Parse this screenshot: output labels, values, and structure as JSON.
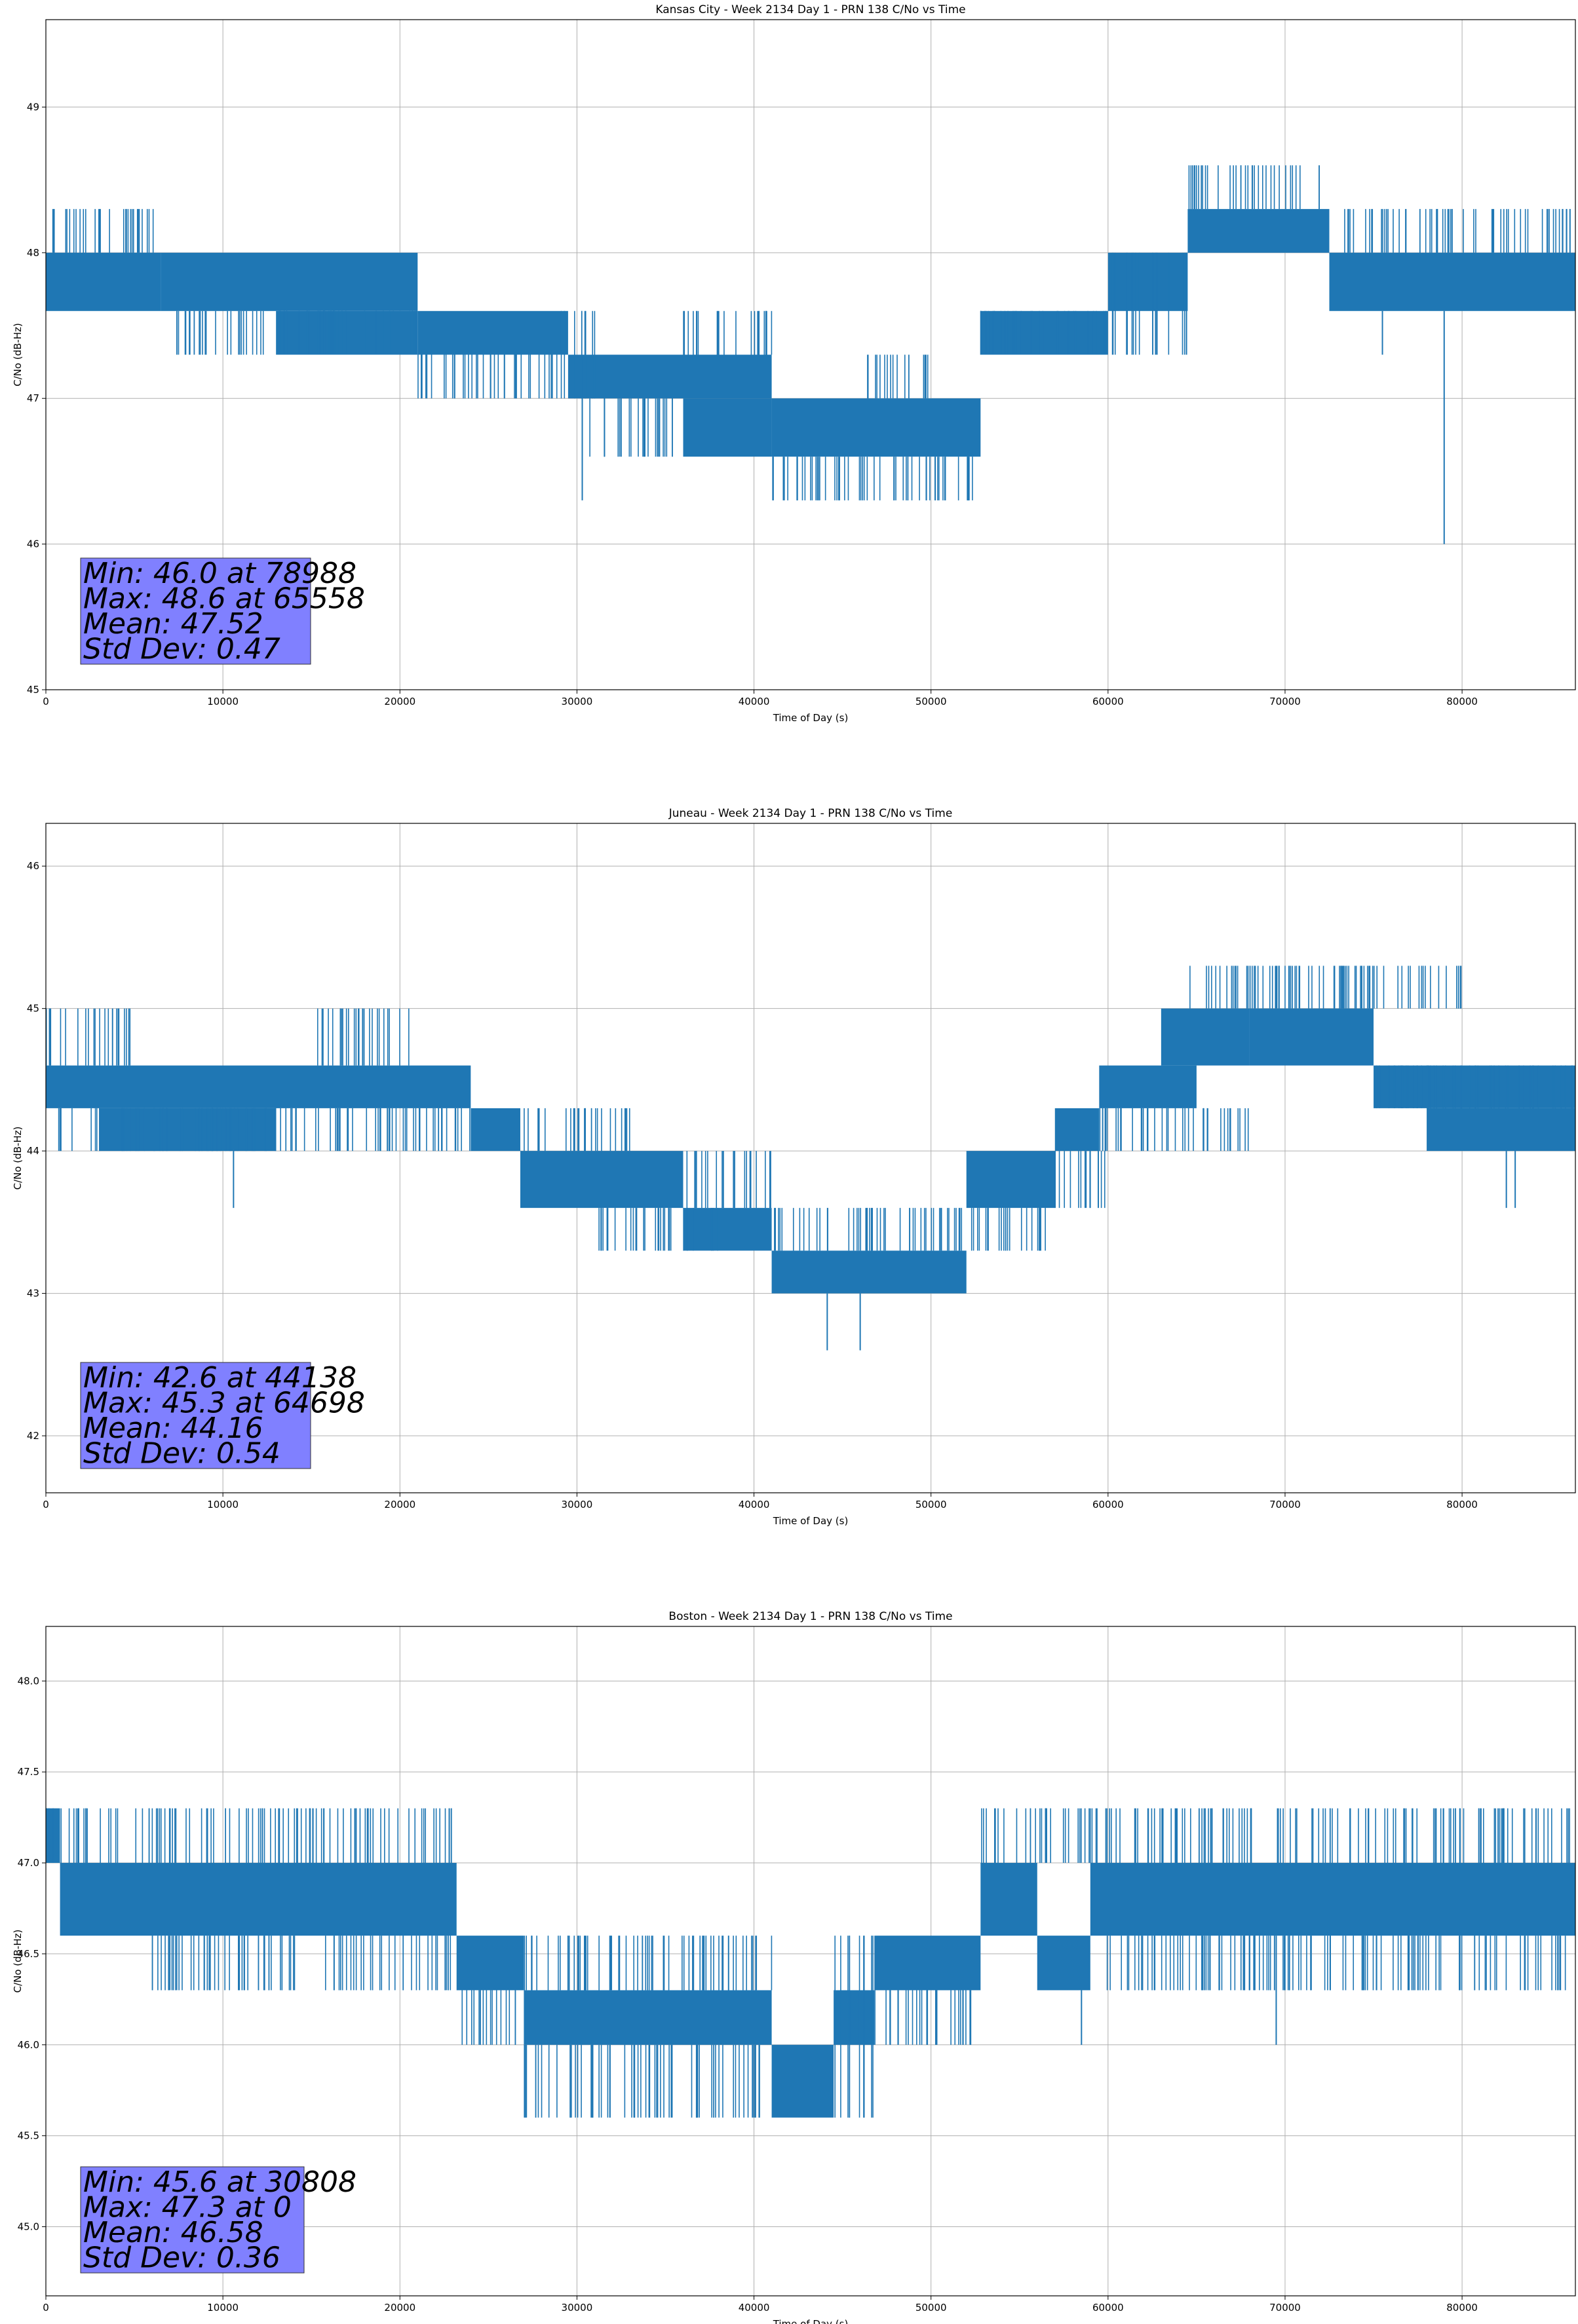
{
  "figure": {
    "background": "#ffffff",
    "line_color": "#1f77b4",
    "stats_box_color": "#8080ff",
    "grid_color": "#b0b0b0"
  },
  "chart_data": [
    {
      "type": "line",
      "title": "Kansas City - Week 2134 Day 1 - PRN 138 C/No vs Time",
      "xlabel": "Time of Day (s)",
      "ylabel": "C/No (dB-Hz)",
      "xlim": [
        0,
        86400
      ],
      "ylim": [
        45,
        49.6
      ],
      "xticks": [
        0,
        10000,
        20000,
        30000,
        40000,
        50000,
        60000,
        70000,
        80000
      ],
      "xtick_labels": [
        "0",
        "10000",
        "20000",
        "30000",
        "40000",
        "50000",
        "60000",
        "70000",
        "80000"
      ],
      "yticks": [
        45,
        46,
        47,
        48,
        49
      ],
      "ytick_labels": [
        "45",
        "46",
        "47",
        "48",
        "49"
      ],
      "grid": true,
      "stats_box": {
        "placement": "bottom-left",
        "lines": [
          "Min: 46.0 at 78988",
          "Max: 48.6 at 65558",
          "Mean: 47.52",
          "Std Dev: 0.47"
        ]
      },
      "bands": [
        {
          "x": [
            0,
            6500
          ],
          "y": [
            47.6,
            48.0
          ]
        },
        {
          "x": [
            6500,
            21000
          ],
          "y": [
            47.6,
            48.0
          ]
        },
        {
          "x": [
            13000,
            21000
          ],
          "y": [
            47.3,
            47.6
          ]
        },
        {
          "x": [
            21000,
            29500
          ],
          "y": [
            47.3,
            47.6
          ]
        },
        {
          "x": [
            29500,
            41000
          ],
          "y": [
            47.0,
            47.3
          ]
        },
        {
          "x": [
            36000,
            41000
          ],
          "y": [
            46.6,
            47.0
          ]
        },
        {
          "x": [
            41000,
            52800
          ],
          "y": [
            46.6,
            47.0
          ]
        },
        {
          "x": [
            52800,
            60000
          ],
          "y": [
            47.3,
            47.6
          ]
        },
        {
          "x": [
            60000,
            64500
          ],
          "y": [
            47.6,
            48.0
          ]
        },
        {
          "x": [
            64500,
            72500
          ],
          "y": [
            48.0,
            48.3
          ]
        },
        {
          "x": [
            72500,
            86400
          ],
          "y": [
            47.6,
            48.0
          ]
        }
      ],
      "spikes": [
        {
          "x": [
            0,
            6500
          ],
          "y": [
            48.0,
            48.3
          ]
        },
        {
          "x": [
            7000,
            21000
          ],
          "y": [
            47.3,
            47.6
          ]
        },
        {
          "x": [
            21000,
            29000
          ],
          "y": [
            47.0,
            47.3
          ]
        },
        {
          "x": [
            29000,
            31000
          ],
          "y": [
            47.6,
            47.0
          ]
        },
        {
          "x": [
            30000,
            36000
          ],
          "y": [
            46.6,
            47.0
          ]
        },
        {
          "x": [
            36000,
            41000
          ],
          "y": [
            47.3,
            47.6
          ]
        },
        {
          "x": [
            41000,
            52800
          ],
          "y": [
            46.3,
            46.6
          ]
        },
        {
          "x": [
            46000,
            50000
          ],
          "y": [
            47.0,
            47.3
          ]
        },
        {
          "x": [
            52800,
            60000
          ],
          "y": [
            47.6,
            47.3
          ]
        },
        {
          "x": [
            60000,
            64500
          ],
          "y": [
            47.3,
            48.0
          ]
        },
        {
          "x": [
            64500,
            72500
          ],
          "y": [
            48.3,
            48.6
          ]
        },
        {
          "x": [
            72500,
            86400
          ],
          "y": [
            48.0,
            48.3
          ]
        }
      ],
      "extra_spikes": [
        {
          "x": 30300,
          "y0": 47.0,
          "y1": 46.3
        },
        {
          "x": 78988,
          "y0": 47.6,
          "y1": 46.0
        },
        {
          "x": 75500,
          "y0": 47.6,
          "y1": 47.3
        }
      ]
    },
    {
      "type": "line",
      "title": "Juneau - Week 2134 Day 1 - PRN 138 C/No vs Time",
      "xlabel": "Time of Day (s)",
      "ylabel": "C/No (dB-Hz)",
      "xlim": [
        0,
        86400
      ],
      "ylim": [
        41.6,
        46.3
      ],
      "xticks": [
        0,
        10000,
        20000,
        30000,
        40000,
        50000,
        60000,
        70000,
        80000
      ],
      "xtick_labels": [
        "0",
        "10000",
        "20000",
        "30000",
        "40000",
        "50000",
        "60000",
        "70000",
        "80000"
      ],
      "yticks": [
        42,
        43,
        44,
        45,
        46
      ],
      "ytick_labels": [
        "42",
        "43",
        "44",
        "45",
        "46"
      ],
      "grid": true,
      "stats_box": {
        "placement": "bottom-left",
        "lines": [
          "Min: 42.6 at 44138",
          "Max: 45.3 at 64698",
          "Mean: 44.16",
          "Std Dev: 0.54"
        ]
      },
      "bands": [
        {
          "x": [
            0,
            24000
          ],
          "y": [
            44.3,
            44.6
          ]
        },
        {
          "x": [
            3000,
            13000
          ],
          "y": [
            44.0,
            44.3
          ]
        },
        {
          "x": [
            24000,
            26800
          ],
          "y": [
            44.0,
            44.3
          ]
        },
        {
          "x": [
            26800,
            36000
          ],
          "y": [
            43.6,
            44.0
          ]
        },
        {
          "x": [
            36000,
            41000
          ],
          "y": [
            43.3,
            43.6
          ]
        },
        {
          "x": [
            41000,
            52000
          ],
          "y": [
            43.0,
            43.3
          ]
        },
        {
          "x": [
            52000,
            57000
          ],
          "y": [
            43.6,
            44.0
          ]
        },
        {
          "x": [
            57000,
            59500
          ],
          "y": [
            44.0,
            44.3
          ]
        },
        {
          "x": [
            59500,
            65000
          ],
          "y": [
            44.3,
            44.6
          ]
        },
        {
          "x": [
            63000,
            68000
          ],
          "y": [
            44.6,
            45.0
          ]
        },
        {
          "x": [
            68000,
            75000
          ],
          "y": [
            44.6,
            45.0
          ]
        },
        {
          "x": [
            75000,
            86400
          ],
          "y": [
            44.3,
            44.6
          ]
        },
        {
          "x": [
            78000,
            86400
          ],
          "y": [
            44.0,
            44.3
          ]
        }
      ],
      "spikes": [
        {
          "x": [
            0,
            5000
          ],
          "y": [
            44.6,
            45.0
          ]
        },
        {
          "x": [
            0,
            24000
          ],
          "y": [
            44.0,
            44.3
          ]
        },
        {
          "x": [
            15000,
            21000
          ],
          "y": [
            44.6,
            45.0
          ]
        },
        {
          "x": [
            26800,
            33000
          ],
          "y": [
            44.0,
            44.3
          ]
        },
        {
          "x": [
            31000,
            38000
          ],
          "y": [
            43.3,
            43.6
          ]
        },
        {
          "x": [
            36000,
            41000
          ],
          "y": [
            43.6,
            44.0
          ]
        },
        {
          "x": [
            41000,
            52000
          ],
          "y": [
            43.3,
            43.6
          ]
        },
        {
          "x": [
            52000,
            57000
          ],
          "y": [
            43.3,
            43.6
          ]
        },
        {
          "x": [
            57000,
            60000
          ],
          "y": [
            43.6,
            44.0
          ]
        },
        {
          "x": [
            59500,
            68000
          ],
          "y": [
            44.0,
            44.3
          ]
        },
        {
          "x": [
            64500,
            71000
          ],
          "y": [
            45.0,
            45.3
          ]
        },
        {
          "x": [
            68000,
            80000
          ],
          "y": [
            45.0,
            45.3
          ]
        },
        {
          "x": [
            75000,
            86400
          ],
          "y": [
            44.6,
            44.3
          ]
        }
      ],
      "extra_spikes": [
        {
          "x": 10600,
          "y0": 44.0,
          "y1": 43.6
        },
        {
          "x": 44138,
          "y0": 43.0,
          "y1": 42.6
        },
        {
          "x": 46000,
          "y0": 43.0,
          "y1": 42.6
        },
        {
          "x": 82500,
          "y0": 44.0,
          "y1": 43.6
        },
        {
          "x": 83000,
          "y0": 44.0,
          "y1": 43.6
        }
      ]
    },
    {
      "type": "line",
      "title": "Boston - Week 2134 Day 1 - PRN 138 C/No vs Time",
      "xlabel": "Time of Day (s)",
      "ylabel": "C/No (dB-Hz)",
      "xlim": [
        0,
        86400
      ],
      "ylim": [
        44.62,
        48.3
      ],
      "xticks": [
        0,
        10000,
        20000,
        30000,
        40000,
        50000,
        60000,
        70000,
        80000
      ],
      "xtick_labels": [
        "0",
        "10000",
        "20000",
        "30000",
        "40000",
        "50000",
        "60000",
        "70000",
        "80000"
      ],
      "yticks": [
        45.0,
        45.5,
        46.0,
        46.5,
        47.0,
        47.5,
        48.0
      ],
      "ytick_labels": [
        "45.0",
        "45.5",
        "46.0",
        "46.5",
        "47.0",
        "47.5",
        "48.0"
      ],
      "grid": true,
      "stats_box": {
        "placement": "bottom-left",
        "lines": [
          "Min: 45.6 at 30808",
          "Max: 47.3 at 0",
          "Mean: 46.58",
          "Std Dev: 0.36"
        ]
      },
      "bands": [
        {
          "x": [
            0,
            800
          ],
          "y": [
            47.0,
            47.3
          ]
        },
        {
          "x": [
            800,
            23200
          ],
          "y": [
            46.6,
            47.0
          ]
        },
        {
          "x": [
            23200,
            27000
          ],
          "y": [
            46.3,
            46.6
          ]
        },
        {
          "x": [
            27000,
            41000
          ],
          "y": [
            46.0,
            46.3
          ]
        },
        {
          "x": [
            41000,
            44500
          ],
          "y": [
            45.6,
            46.0
          ]
        },
        {
          "x": [
            44500,
            46800
          ],
          "y": [
            46.0,
            46.3
          ]
        },
        {
          "x": [
            46800,
            52800
          ],
          "y": [
            46.3,
            46.6
          ]
        },
        {
          "x": [
            52800,
            56000
          ],
          "y": [
            46.6,
            47.0
          ]
        },
        {
          "x": [
            56000,
            59000
          ],
          "y": [
            46.3,
            46.6
          ]
        },
        {
          "x": [
            59000,
            86400
          ],
          "y": [
            46.6,
            47.0
          ]
        }
      ],
      "spikes": [
        {
          "x": [
            0,
            23000
          ],
          "y": [
            47.0,
            47.3
          ]
        },
        {
          "x": [
            6000,
            23000
          ],
          "y": [
            46.3,
            46.6
          ]
        },
        {
          "x": [
            23200,
            27000
          ],
          "y": [
            46.0,
            46.3
          ]
        },
        {
          "x": [
            27000,
            41000
          ],
          "y": [
            45.6,
            46.0
          ]
        },
        {
          "x": [
            27000,
            41000
          ],
          "y": [
            46.3,
            46.6
          ]
        },
        {
          "x": [
            44500,
            46800
          ],
          "y": [
            46.6,
            45.6
          ]
        },
        {
          "x": [
            46800,
            52800
          ],
          "y": [
            46.0,
            46.3
          ]
        },
        {
          "x": [
            52800,
            59000
          ],
          "y": [
            47.0,
            47.3
          ]
        },
        {
          "x": [
            59000,
            86400
          ],
          "y": [
            47.0,
            47.3
          ]
        },
        {
          "x": [
            59000,
            86400
          ],
          "y": [
            46.3,
            46.6
          ]
        }
      ],
      "extra_spikes": [
        {
          "x": 30808,
          "y0": 46.0,
          "y1": 45.6
        },
        {
          "x": 7000,
          "y0": 46.6,
          "y1": 46.3
        },
        {
          "x": 58500,
          "y0": 46.3,
          "y1": 46.0
        },
        {
          "x": 69500,
          "y0": 46.6,
          "y1": 46.0
        }
      ]
    }
  ]
}
